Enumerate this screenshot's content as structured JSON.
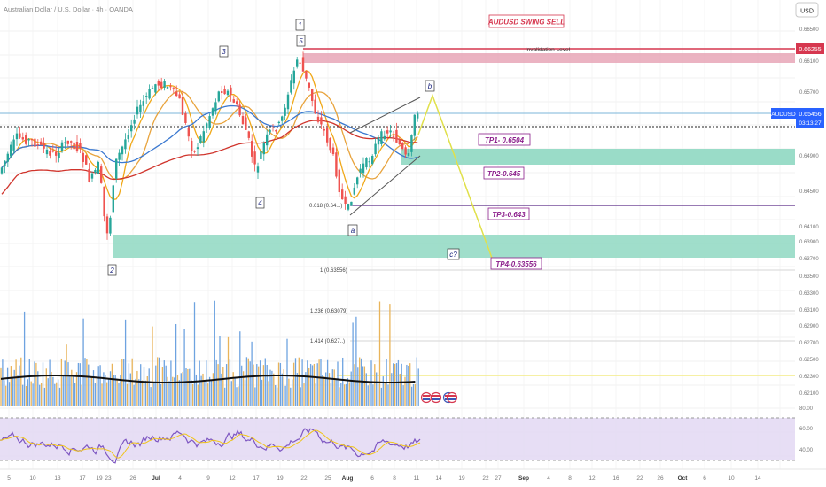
{
  "header": {
    "symbol_title": "Australian Dollar / U.S. Dollar · 4h · OANDA",
    "currency_button": "USD"
  },
  "chart_data": [
    {
      "type": "line",
      "title": "AUDUSD SWING SELL",
      "subtitle": "",
      "xlabel": "",
      "ylabel": "",
      "ylim": [
        0.615,
        0.6652
      ],
      "grid": true,
      "y_ticks": [
        "0.66500",
        "0.66100",
        "0.65700",
        "0.65300",
        "0.64900",
        "0.64500",
        "0.64100",
        "0.63900",
        "0.63700",
        "0.63500",
        "0.63300",
        "0.63100",
        "0.62900",
        "0.62700",
        "0.62500",
        "0.62300",
        "0.62100"
      ],
      "x_ticks": [
        "5",
        "10",
        "13",
        "17",
        "19",
        "23",
        "26",
        "Jul",
        "4",
        "9",
        "12",
        "17",
        "19",
        "22",
        "25",
        "Aug",
        "6",
        "8",
        "11",
        "14",
        "19",
        "22",
        "27",
        "Sep",
        "4",
        "8",
        "12",
        "16",
        "22",
        "26",
        "Oct",
        "6",
        "10",
        "14"
      ],
      "price_labels": {
        "invalidation": "0.66255",
        "current": "0.65456",
        "symbol": "AUDUSD",
        "countdown": "03:13:27"
      },
      "annotations": {
        "invalidation": "Invalidation Level",
        "tp1": "TP1- 0.6504",
        "tp2": "TP2-0.645",
        "tp3": "TP3-0.643",
        "tp4": "TP4-0.63556",
        "fib_0618": "0.618 (0.64...)",
        "fib_1": "1 (0.63556)",
        "fib_1236": "1.236 (0.63079)",
        "fib_1414": "1.414 (0.627..)"
      },
      "wave_labels": [
        "1",
        "5",
        "3",
        "4",
        "2",
        "a",
        "b",
        "c?"
      ],
      "levels": [
        {
          "name": "Invalidation",
          "value": 0.66255,
          "color": "#d6374f"
        },
        {
          "name": "TP1",
          "value": 0.6504
        },
        {
          "name": "TP2",
          "value": 0.645
        },
        {
          "name": "TP3",
          "value": 0.643,
          "color": "#5b2a86"
        },
        {
          "name": "TP4",
          "value": 0.63556
        }
      ],
      "projection": [
        {
          "x": "Aug 14",
          "y": 0.6548
        },
        {
          "x": "Aug 16",
          "y": 0.6572
        },
        {
          "x": "Aug 27",
          "y": 0.637
        }
      ],
      "colors": {
        "bull": "#26a69a",
        "bear": "#ef5350",
        "ma_fast": "#f0a818",
        "ma_mid": "#3a78d0",
        "ma_slow": "#d0342c",
        "invalidation": "#d6374f",
        "tp_label": "#8b1e8b",
        "projection": "#e6e65a",
        "fib": "#5b2a86",
        "zone": "#26a69a"
      }
    },
    {
      "type": "line",
      "title": "RSI",
      "xlabel": "",
      "ylabel": "",
      "ylim": [
        20,
        82
      ],
      "y_ticks": [
        "80.00",
        "60.00",
        "40.00"
      ],
      "bands": [
        70,
        30
      ],
      "colors": {
        "rsi": "#7e57c2",
        "signal": "#f0c419",
        "band": "#e3d8f3"
      }
    }
  ]
}
